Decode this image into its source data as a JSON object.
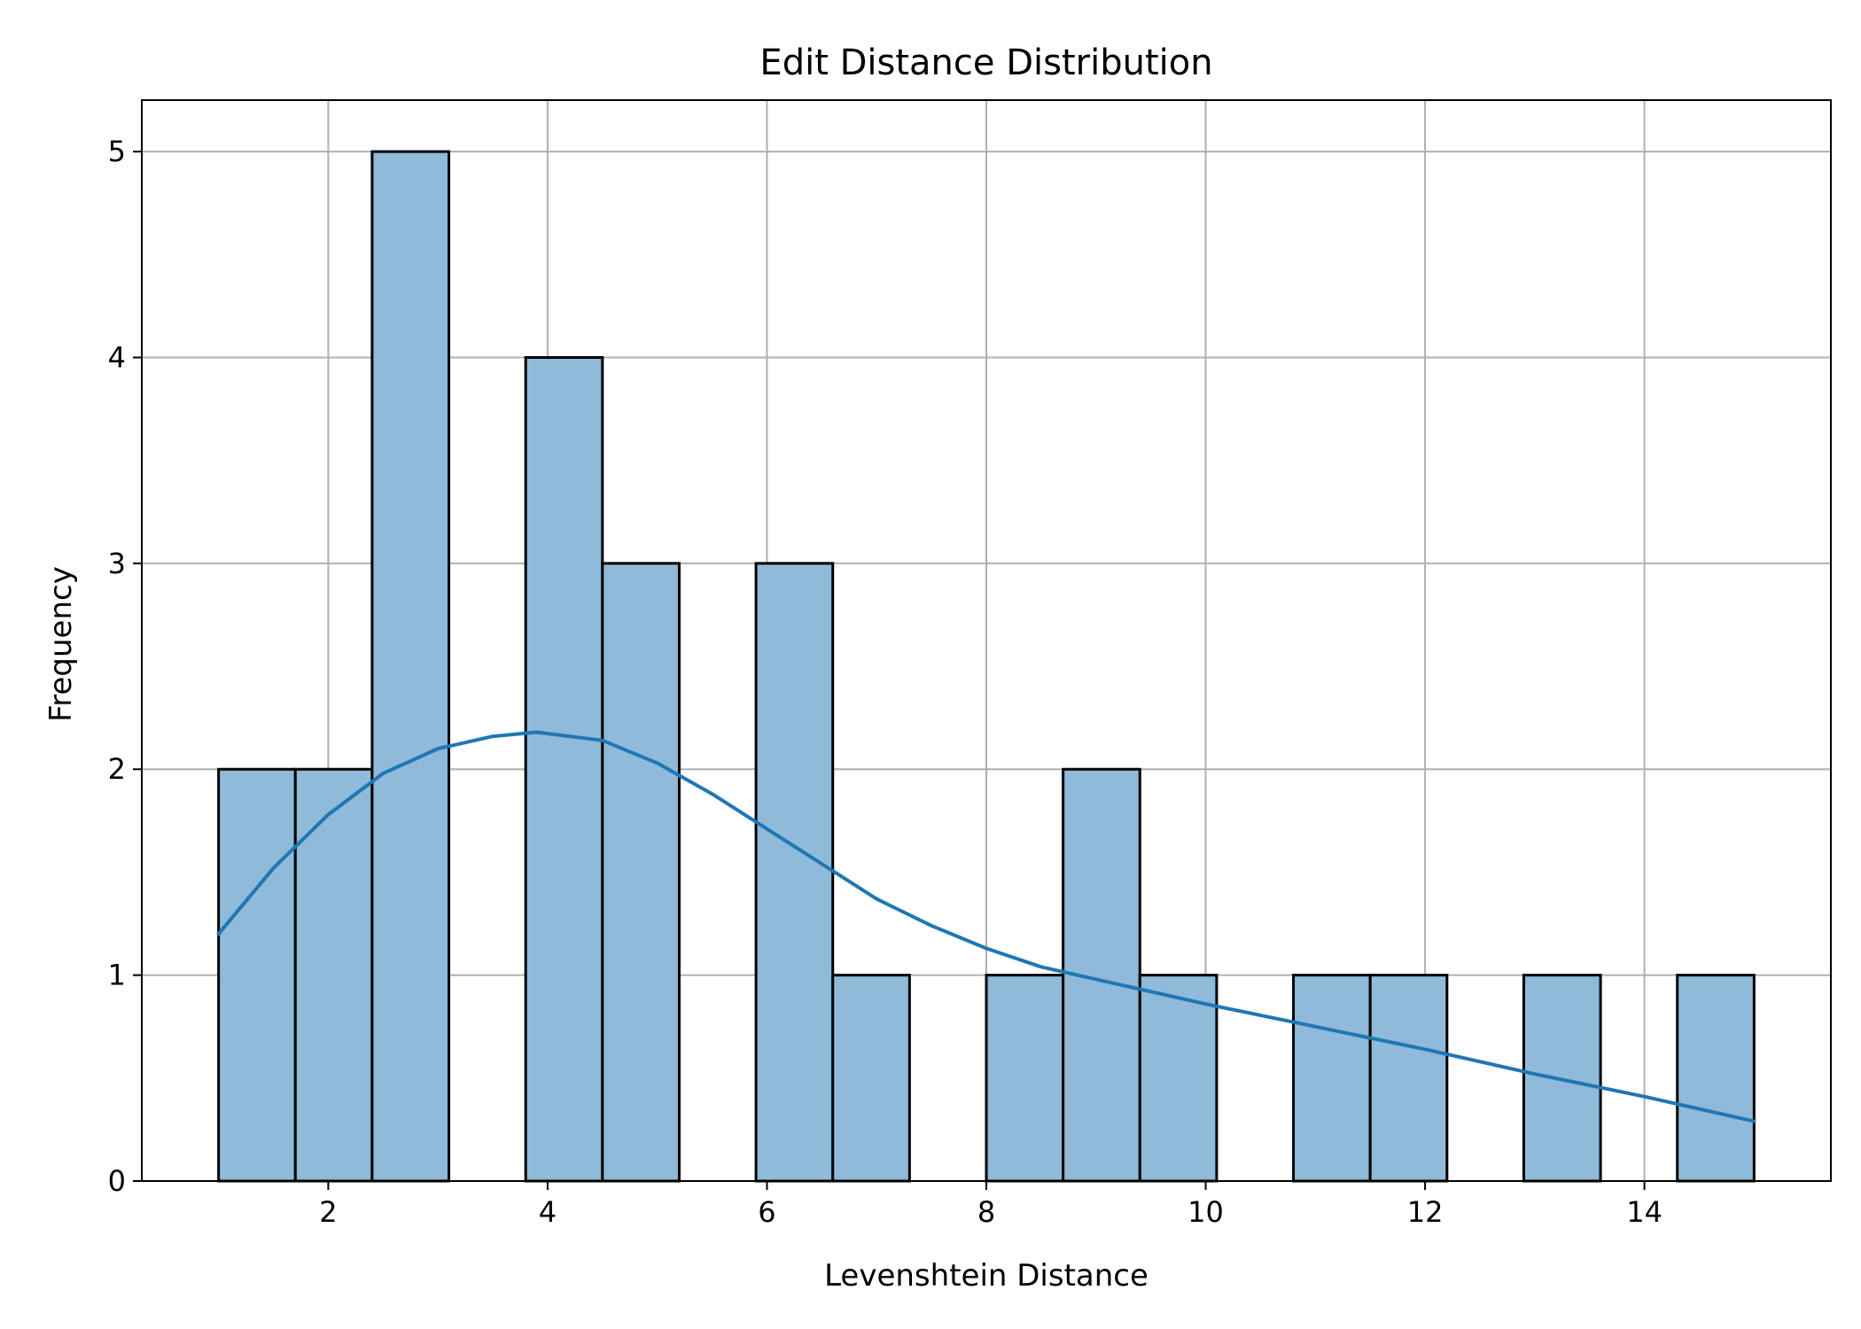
{
  "chart_data": {
    "type": "bar",
    "title": "Edit Distance Distribution",
    "xlabel": "Levenshtein Distance",
    "ylabel": "Frequency",
    "xlim": [
      0.3,
      15.7
    ],
    "ylim": [
      0,
      5.25
    ],
    "xticks": [
      2,
      4,
      6,
      8,
      10,
      12,
      14
    ],
    "yticks": [
      0,
      1,
      2,
      3,
      4,
      5
    ],
    "grid": true,
    "bar_color": "#8fbad9",
    "bar_edge_color": "#000000",
    "line_color": "#1f77b4",
    "bins": [
      {
        "x0": 1.0,
        "x1": 1.7,
        "count": 2
      },
      {
        "x0": 1.7,
        "x1": 2.4,
        "count": 2
      },
      {
        "x0": 2.4,
        "x1": 3.1,
        "count": 5
      },
      {
        "x0": 3.1,
        "x1": 3.8,
        "count": 0
      },
      {
        "x0": 3.8,
        "x1": 4.5,
        "count": 4
      },
      {
        "x0": 4.5,
        "x1": 5.2,
        "count": 3
      },
      {
        "x0": 5.2,
        "x1": 5.9,
        "count": 0
      },
      {
        "x0": 5.9,
        "x1": 6.6,
        "count": 3
      },
      {
        "x0": 6.6,
        "x1": 7.3,
        "count": 1
      },
      {
        "x0": 7.3,
        "x1": 8.0,
        "count": 0
      },
      {
        "x0": 8.0,
        "x1": 8.7,
        "count": 1
      },
      {
        "x0": 8.7,
        "x1": 9.4,
        "count": 2
      },
      {
        "x0": 9.4,
        "x1": 10.1,
        "count": 1
      },
      {
        "x0": 10.1,
        "x1": 10.8,
        "count": 0
      },
      {
        "x0": 10.8,
        "x1": 11.5,
        "count": 1
      },
      {
        "x0": 11.5,
        "x1": 12.2,
        "count": 1
      },
      {
        "x0": 12.2,
        "x1": 12.9,
        "count": 0
      },
      {
        "x0": 12.9,
        "x1": 13.6,
        "count": 1
      },
      {
        "x0": 13.6,
        "x1": 14.3,
        "count": 0
      },
      {
        "x0": 14.3,
        "x1": 15.0,
        "count": 1
      }
    ],
    "kde": {
      "x": [
        1.0,
        1.5,
        2.0,
        2.5,
        3.0,
        3.5,
        3.9,
        4.5,
        5.0,
        5.5,
        6.0,
        6.5,
        7.0,
        7.5,
        8.0,
        8.5,
        9.0,
        9.5,
        10.0,
        11.0,
        12.0,
        13.0,
        14.0,
        15.0
      ],
      "y": [
        1.2,
        1.52,
        1.78,
        1.98,
        2.1,
        2.16,
        2.18,
        2.14,
        2.03,
        1.88,
        1.71,
        1.54,
        1.37,
        1.24,
        1.13,
        1.04,
        0.98,
        0.92,
        0.86,
        0.75,
        0.64,
        0.52,
        0.41,
        0.29
      ]
    }
  }
}
